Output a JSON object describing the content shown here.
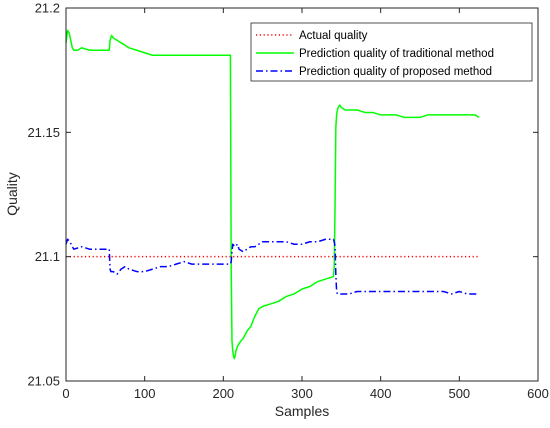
{
  "chart_data": {
    "type": "line",
    "title": "",
    "xlabel": "Samples",
    "ylabel": "Quality",
    "xlim": [
      0,
      600
    ],
    "ylim": [
      21.05,
      21.2
    ],
    "xticks": [
      0,
      100,
      200,
      300,
      400,
      500,
      600
    ],
    "yticks": [
      21.05,
      21.1,
      21.15,
      21.2
    ],
    "xtick_labels": [
      "0",
      "100",
      "200",
      "300",
      "400",
      "500",
      "600"
    ],
    "ytick_labels": [
      "21.05",
      "21.1",
      "21.15",
      "21.2"
    ],
    "grid": false,
    "legend_position": "top-right",
    "series": [
      {
        "name": "Actual quality",
        "color": "#ff0000",
        "style": "dotted",
        "x": [
          0,
          525
        ],
        "y": [
          21.1,
          21.1
        ]
      },
      {
        "name": "Prediction quality of traditional method",
        "color": "#00ff00",
        "style": "solid",
        "x": [
          0,
          2,
          4,
          6,
          8,
          10,
          15,
          20,
          30,
          40,
          50,
          53,
          54,
          55,
          56,
          58,
          60,
          65,
          70,
          75,
          80,
          90,
          100,
          110,
          120,
          130,
          140,
          150,
          160,
          170,
          180,
          190,
          200,
          208,
          209,
          210,
          211,
          212,
          213,
          214,
          215,
          216,
          218,
          220,
          222,
          225,
          230,
          235,
          240,
          245,
          250,
          260,
          270,
          280,
          290,
          300,
          310,
          320,
          330,
          340,
          341,
          342,
          343,
          344,
          345,
          346,
          348,
          350,
          355,
          360,
          370,
          380,
          390,
          400,
          410,
          420,
          430,
          440,
          450,
          460,
          470,
          480,
          490,
          500,
          510,
          520,
          525
        ],
        "y": [
          21.186,
          21.191,
          21.19,
          21.187,
          21.184,
          21.183,
          21.183,
          21.184,
          21.183,
          21.183,
          21.183,
          21.183,
          21.183,
          21.183,
          21.187,
          21.189,
          21.188,
          21.187,
          21.186,
          21.185,
          21.184,
          21.183,
          21.182,
          21.181,
          21.181,
          21.181,
          21.181,
          21.181,
          21.181,
          21.181,
          21.181,
          21.181,
          21.181,
          21.181,
          21.181,
          21.095,
          21.066,
          21.062,
          21.06,
          21.059,
          21.06,
          21.062,
          21.064,
          21.065,
          21.066,
          21.067,
          21.07,
          21.072,
          21.076,
          21.079,
          21.08,
          21.081,
          21.082,
          21.084,
          21.085,
          21.087,
          21.088,
          21.09,
          21.091,
          21.092,
          21.096,
          21.12,
          21.152,
          21.157,
          21.159,
          21.16,
          21.161,
          21.16,
          21.159,
          21.159,
          21.159,
          21.158,
          21.158,
          21.157,
          21.157,
          21.157,
          21.156,
          21.156,
          21.156,
          21.157,
          21.157,
          21.157,
          21.157,
          21.157,
          21.157,
          21.157,
          21.156
        ]
      },
      {
        "name": "Prediction quality of proposed method",
        "color": "#0000ff",
        "style": "dashdot",
        "x": [
          0,
          2,
          5,
          8,
          10,
          20,
          30,
          40,
          50,
          55,
          56,
          57,
          60,
          65,
          70,
          75,
          80,
          90,
          100,
          110,
          120,
          130,
          140,
          150,
          160,
          170,
          180,
          190,
          200,
          205,
          208,
          209,
          210,
          211,
          212,
          215,
          218,
          220,
          225,
          230,
          235,
          240,
          245,
          250,
          260,
          270,
          280,
          290,
          300,
          310,
          320,
          330,
          340,
          341,
          342,
          343,
          344,
          345,
          350,
          360,
          370,
          380,
          390,
          400,
          410,
          420,
          430,
          440,
          450,
          460,
          470,
          480,
          490,
          500,
          510,
          520,
          525
        ],
        "y": [
          21.105,
          21.107,
          21.106,
          21.104,
          21.103,
          21.104,
          21.103,
          21.103,
          21.103,
          21.103,
          21.095,
          21.094,
          21.094,
          21.093,
          21.095,
          21.096,
          21.095,
          21.094,
          21.094,
          21.095,
          21.096,
          21.096,
          21.097,
          21.098,
          21.097,
          21.097,
          21.097,
          21.097,
          21.097,
          21.097,
          21.097,
          21.097,
          21.098,
          21.102,
          21.105,
          21.104,
          21.105,
          21.103,
          21.102,
          21.103,
          21.104,
          21.104,
          21.105,
          21.106,
          21.106,
          21.106,
          21.106,
          21.105,
          21.105,
          21.106,
          21.106,
          21.107,
          21.107,
          21.106,
          21.104,
          21.093,
          21.086,
          21.085,
          21.085,
          21.085,
          21.086,
          21.086,
          21.086,
          21.086,
          21.086,
          21.086,
          21.086,
          21.086,
          21.086,
          21.086,
          21.086,
          21.086,
          21.085,
          21.086,
          21.085,
          21.085,
          21.085
        ]
      }
    ]
  }
}
